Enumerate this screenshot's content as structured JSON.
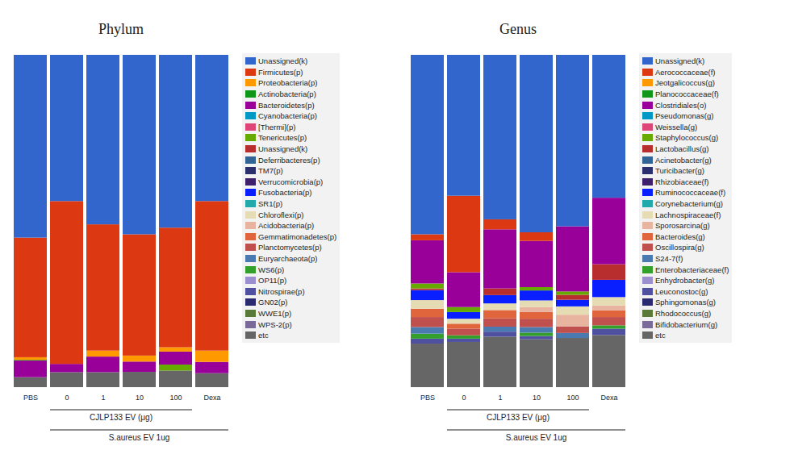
{
  "chart_data": [
    {
      "type": "bar",
      "stacked": true,
      "title": "Phylum",
      "legend": "right",
      "tick_labels": "x",
      "categories": [
        "PBS",
        "0",
        "1",
        "10",
        "100",
        "Dexa"
      ],
      "ylim": [
        0,
        100
      ],
      "series": [
        {
          "name": "Unassigned(k)",
          "color": "#3366cc",
          "values": [
            55,
            44,
            51,
            54,
            52,
            44
          ]
        },
        {
          "name": "Firmicutes(p)",
          "color": "#dc3912",
          "values": [
            36,
            49,
            38,
            36.5,
            36,
            45
          ]
        },
        {
          "name": "Proteobacteria(p)",
          "color": "#ff9900",
          "values": [
            0.8,
            0,
            1.8,
            1.8,
            1.3,
            3.4
          ]
        },
        {
          "name": "Actinobacteria(p)",
          "color": "#109618",
          "values": [
            0.2,
            0,
            0,
            0,
            0,
            0
          ]
        },
        {
          "name": "Bacteroidetes(p)",
          "color": "#990099",
          "values": [
            5,
            2.5,
            4.7,
            3.1,
            3.9,
            3.4
          ]
        },
        {
          "name": "Cyanobacteria(p)",
          "color": "#0099c6",
          "values": [
            0,
            0,
            0,
            0,
            0,
            0
          ]
        },
        {
          "name": "[Thermi](p)",
          "color": "#dd4477",
          "values": [
            0,
            0,
            0,
            0,
            0,
            0
          ]
        },
        {
          "name": "Tenericutes(p)",
          "color": "#66aa00",
          "values": [
            0,
            0,
            0,
            0,
            1.8,
            0
          ]
        },
        {
          "name": "Unassigned(k)",
          "color": "#b82e2e",
          "values": [
            0,
            0,
            0,
            0,
            0,
            0
          ]
        },
        {
          "name": "Deferribacteres(p)",
          "color": "#316395",
          "values": [
            0,
            0,
            0,
            0,
            0,
            0
          ]
        },
        {
          "name": "TM7(p)",
          "color": "#2b2f6e",
          "values": [
            0,
            0,
            0,
            0,
            0,
            0
          ]
        },
        {
          "name": "Verrucomicrobia(p)",
          "color": "#3d1f6b",
          "values": [
            0,
            0,
            0,
            0,
            0,
            0
          ]
        },
        {
          "name": "Fusobacteria(p)",
          "color": "#0a1fff",
          "values": [
            0,
            0,
            0,
            0,
            0,
            0
          ]
        },
        {
          "name": "SR1(p)",
          "color": "#22aaaa",
          "values": [
            0,
            0,
            0,
            0,
            0,
            0
          ]
        },
        {
          "name": "Chloroflexi(p)",
          "color": "#e6dcb4",
          "values": [
            0,
            0,
            0,
            0,
            0,
            0
          ]
        },
        {
          "name": "Acidobacteria(p)",
          "color": "#e8b4a0",
          "values": [
            0,
            0,
            0,
            0,
            0,
            0
          ]
        },
        {
          "name": "Gemmatimonadetes(p)",
          "color": "#e0643c",
          "values": [
            0,
            0,
            0,
            0,
            0,
            0
          ]
        },
        {
          "name": "Planctomycetes(p)",
          "color": "#c0504d",
          "values": [
            0,
            0,
            0,
            0,
            0,
            0
          ]
        },
        {
          "name": "Euryarchaeota(p)",
          "color": "#4a7ab0",
          "values": [
            0,
            0,
            0,
            0,
            0,
            0
          ]
        },
        {
          "name": "WS6(p)",
          "color": "#33a02c",
          "values": [
            0,
            0,
            0,
            0,
            0,
            0
          ]
        },
        {
          "name": "OP11(p)",
          "color": "#9b8fd0",
          "values": [
            0,
            0,
            0,
            0,
            0,
            0
          ]
        },
        {
          "name": "Nitrospirae(p)",
          "color": "#5050a0",
          "values": [
            0,
            0,
            0,
            0,
            0,
            0
          ]
        },
        {
          "name": "GN02(p)",
          "color": "#2a2a70",
          "values": [
            0,
            0,
            0,
            0,
            0,
            0
          ]
        },
        {
          "name": "WWE1(p)",
          "color": "#5a7a3a",
          "values": [
            0,
            0,
            0,
            0,
            0,
            0
          ]
        },
        {
          "name": "WPS-2(p)",
          "color": "#7a6a9a",
          "values": [
            0,
            0,
            0,
            0,
            0,
            0
          ]
        },
        {
          "name": "etc",
          "color": "#666666",
          "values": [
            3,
            4.5,
            4.5,
            4.6,
            5,
            4.2
          ]
        }
      ],
      "annotations": [
        {
          "text": "CJLP133 EV (μg)",
          "from": "0",
          "to": "100"
        },
        {
          "text": "S.aureus EV 1ug",
          "from": "0",
          "to": "Dexa"
        }
      ]
    },
    {
      "type": "bar",
      "stacked": true,
      "title": "Genus",
      "legend": "right",
      "tick_labels": "x",
      "categories": [
        "PBS",
        "0",
        "1",
        "10",
        "100",
        "Dexa"
      ],
      "ylim": [
        0,
        100
      ],
      "series": [
        {
          "name": "Unassigned(k)",
          "color": "#3366cc",
          "values": [
            54,
            42.4,
            49.5,
            53.4,
            51.6,
            43
          ]
        },
        {
          "name": "Aerococcaceae(f)",
          "color": "#dc3912",
          "values": [
            1.8,
            23,
            3,
            2.6,
            0,
            0
          ]
        },
        {
          "name": "Jeotgalicoccus(g)",
          "color": "#ff9900",
          "values": [
            0,
            0,
            0,
            0,
            0,
            0
          ]
        },
        {
          "name": "Planococcaceae(f)",
          "color": "#109618",
          "values": [
            0,
            0,
            0,
            0,
            0,
            0
          ]
        },
        {
          "name": "Clostridiales(o)",
          "color": "#990099",
          "values": [
            13,
            10.5,
            17.8,
            13.9,
            19.6,
            20
          ]
        },
        {
          "name": "Pseudomonas(g)",
          "color": "#0099c6",
          "values": [
            0,
            0,
            0,
            0,
            0,
            0
          ]
        },
        {
          "name": "Weissella(g)",
          "color": "#dd4477",
          "values": [
            0,
            0,
            0,
            0,
            0,
            0
          ]
        },
        {
          "name": "Staphylococcus(g)",
          "color": "#66aa00",
          "values": [
            1.5,
            1.5,
            0,
            1,
            1,
            0
          ]
        },
        {
          "name": "Lactobacillus(g)",
          "color": "#b82e2e",
          "values": [
            0.5,
            0,
            2,
            0,
            1.5,
            4.7
          ]
        },
        {
          "name": "Acinetobacter(g)",
          "color": "#316395",
          "values": [
            0,
            0,
            0,
            0,
            0,
            0
          ]
        },
        {
          "name": "Turicibacter(g)",
          "color": "#2b2f6e",
          "values": [
            0,
            0,
            0,
            0,
            0,
            0
          ]
        },
        {
          "name": "Rhizobiaceae(f)",
          "color": "#3d1f6b",
          "values": [
            0,
            0,
            0,
            0,
            0,
            0
          ]
        },
        {
          "name": "Ruminococcaceae(f)",
          "color": "#0a1fff",
          "values": [
            3,
            2,
            2.5,
            3,
            2,
            5.2
          ]
        },
        {
          "name": "Corynebacterium(g)",
          "color": "#22aaaa",
          "values": [
            0,
            0,
            0,
            0,
            0,
            0
          ]
        },
        {
          "name": "Lachnospiraceae(f)",
          "color": "#e6dcb4",
          "values": [
            2.6,
            1.5,
            2,
            2,
            2.5,
            2.5
          ]
        },
        {
          "name": "Sporosarcina(g)",
          "color": "#e8b4a0",
          "values": [
            0,
            0,
            0,
            1.5,
            3.5,
            1.5
          ]
        },
        {
          "name": "Bacteroides(g)",
          "color": "#e0643c",
          "values": [
            2.5,
            1.5,
            2.5,
            2,
            0,
            2
          ]
        },
        {
          "name": "Oscillospira(g)",
          "color": "#c0504d",
          "values": [
            3,
            2,
            2.5,
            2.5,
            2,
            2.5
          ]
        },
        {
          "name": "S24-7(f)",
          "color": "#4a7ab0",
          "values": [
            2,
            0,
            1.5,
            1.7,
            1.5,
            0
          ]
        },
        {
          "name": "Enterobacteriaceae(f)",
          "color": "#33a02c",
          "values": [
            1.5,
            1,
            0,
            1,
            0,
            1
          ]
        },
        {
          "name": "Enhydrobacter(g)",
          "color": "#9b8fd0",
          "values": [
            0,
            0,
            0,
            0,
            0,
            0
          ]
        },
        {
          "name": "Leuconostoc(g)",
          "color": "#5050a0",
          "values": [
            1.5,
            1,
            1.5,
            1,
            0,
            1.9
          ]
        },
        {
          "name": "Sphingomonas(g)",
          "color": "#2a2a70",
          "values": [
            0,
            0,
            0,
            0,
            0,
            0
          ]
        },
        {
          "name": "Rhodococcus(g)",
          "color": "#5a7a3a",
          "values": [
            0,
            0,
            0,
            0,
            0,
            0
          ]
        },
        {
          "name": "Bifidobacterium(g)",
          "color": "#7a6a9a",
          "values": [
            0,
            0,
            0,
            0,
            0,
            0
          ]
        },
        {
          "name": "etc",
          "color": "#666666",
          "values": [
            13.1,
            13.6,
            15.2,
            14.4,
            14.8,
            15.7
          ]
        }
      ],
      "annotations": [
        {
          "text": "CJLP133 EV (μg)",
          "from": "0",
          "to": "100"
        },
        {
          "text": "S.aureus EV 1ug",
          "from": "0",
          "to": "Dexa"
        }
      ]
    }
  ]
}
